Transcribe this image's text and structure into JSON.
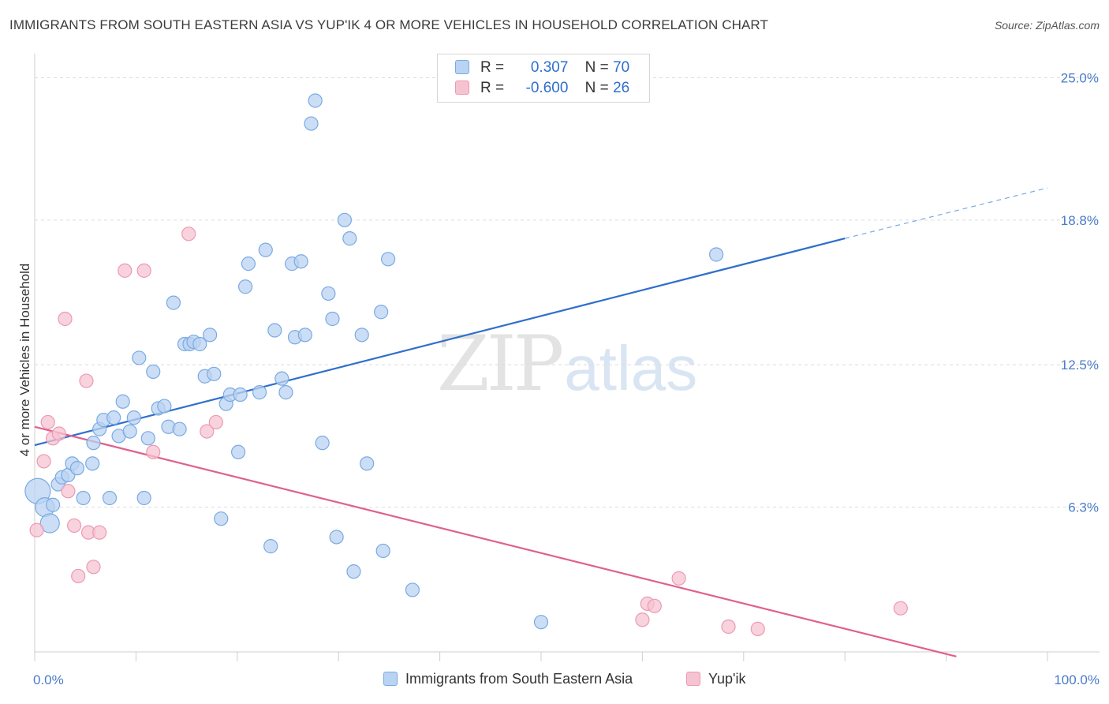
{
  "title": "IMMIGRANTS FROM SOUTH EASTERN ASIA VS YUP'IK 4 OR MORE VEHICLES IN HOUSEHOLD CORRELATION CHART",
  "source": "Source: ZipAtlas.com",
  "watermark": {
    "zip": "ZIP",
    "atlas": "atlas"
  },
  "legend": {
    "rows": [
      {
        "r_label": "R =",
        "r_value": "0.307",
        "n_label": "N =",
        "n_value": "70"
      },
      {
        "r_label": "R =",
        "r_value": "-0.600",
        "n_label": "N =",
        "n_value": "26"
      }
    ]
  },
  "colors": {
    "blue_fill": "#b9d3f2",
    "blue_stroke": "#7aaae3",
    "blue_line": "#2f6fcc",
    "pink_fill": "#f6c3d2",
    "pink_stroke": "#ec9ab4",
    "pink_line": "#e0608c",
    "tick_text": "#4a7cc7",
    "grid": "#dcdcdc"
  },
  "chart_data": {
    "type": "scatter",
    "title": "IMMIGRANTS FROM SOUTH EASTERN ASIA VS YUP'IK 4 OR MORE VEHICLES IN HOUSEHOLD CORRELATION CHART",
    "xlabel": "",
    "ylabel": "4 or more Vehicles in Household",
    "xlim": [
      0,
      100
    ],
    "ylim": [
      0,
      25.7
    ],
    "x_tick_labels": [
      "0.0%",
      "100.0%"
    ],
    "y_ticks": [
      6.3,
      12.5,
      18.8,
      25.0
    ],
    "y_tick_labels": [
      "6.3%",
      "12.5%",
      "18.8%",
      "25.0%"
    ],
    "grid": true,
    "legend_placement": "top-center",
    "series": [
      {
        "name": "Immigrants from South Eastern Asia",
        "color": "#b9d3f2",
        "trend": {
          "x": [
            0,
            80
          ],
          "y": [
            9.0,
            18.0
          ],
          "dashed_to": [
            100,
            20.2
          ]
        },
        "points": [
          {
            "x": 0.3,
            "y": 7.0,
            "s": 3
          },
          {
            "x": 1.0,
            "y": 6.3,
            "s": 2
          },
          {
            "x": 1.5,
            "y": 5.6,
            "s": 2
          },
          {
            "x": 1.8,
            "y": 6.4,
            "s": 1
          },
          {
            "x": 2.3,
            "y": 7.3,
            "s": 1
          },
          {
            "x": 2.7,
            "y": 7.6,
            "s": 1
          },
          {
            "x": 3.3,
            "y": 7.7,
            "s": 1
          },
          {
            "x": 3.7,
            "y": 8.2,
            "s": 1
          },
          {
            "x": 4.2,
            "y": 8.0,
            "s": 1
          },
          {
            "x": 4.8,
            "y": 6.7,
            "s": 1
          },
          {
            "x": 5.8,
            "y": 9.1,
            "s": 1
          },
          {
            "x": 5.7,
            "y": 8.2,
            "s": 1
          },
          {
            "x": 6.4,
            "y": 9.7,
            "s": 1
          },
          {
            "x": 6.8,
            "y": 10.1,
            "s": 1
          },
          {
            "x": 7.4,
            "y": 6.7,
            "s": 1
          },
          {
            "x": 7.8,
            "y": 10.2,
            "s": 1
          },
          {
            "x": 8.3,
            "y": 9.4,
            "s": 1
          },
          {
            "x": 8.7,
            "y": 10.9,
            "s": 1
          },
          {
            "x": 9.4,
            "y": 9.6,
            "s": 1
          },
          {
            "x": 9.8,
            "y": 10.2,
            "s": 1
          },
          {
            "x": 10.3,
            "y": 12.8,
            "s": 1
          },
          {
            "x": 10.8,
            "y": 6.7,
            "s": 1
          },
          {
            "x": 11.2,
            "y": 9.3,
            "s": 1
          },
          {
            "x": 11.7,
            "y": 12.2,
            "s": 1
          },
          {
            "x": 12.2,
            "y": 10.6,
            "s": 1
          },
          {
            "x": 12.8,
            "y": 10.7,
            "s": 1
          },
          {
            "x": 13.2,
            "y": 9.8,
            "s": 1
          },
          {
            "x": 13.7,
            "y": 15.2,
            "s": 1
          },
          {
            "x": 14.3,
            "y": 9.7,
            "s": 1
          },
          {
            "x": 14.8,
            "y": 13.4,
            "s": 1
          },
          {
            "x": 15.3,
            "y": 13.4,
            "s": 1
          },
          {
            "x": 15.7,
            "y": 13.5,
            "s": 1
          },
          {
            "x": 16.3,
            "y": 13.4,
            "s": 1
          },
          {
            "x": 16.8,
            "y": 12.0,
            "s": 1
          },
          {
            "x": 17.3,
            "y": 13.8,
            "s": 1
          },
          {
            "x": 17.7,
            "y": 12.1,
            "s": 1
          },
          {
            "x": 18.4,
            "y": 5.8,
            "s": 1
          },
          {
            "x": 18.9,
            "y": 10.8,
            "s": 1
          },
          {
            "x": 19.3,
            "y": 11.2,
            "s": 1
          },
          {
            "x": 20.1,
            "y": 8.7,
            "s": 1
          },
          {
            "x": 20.3,
            "y": 11.2,
            "s": 1
          },
          {
            "x": 20.8,
            "y": 15.9,
            "s": 1
          },
          {
            "x": 21.1,
            "y": 16.9,
            "s": 1
          },
          {
            "x": 22.2,
            "y": 11.3,
            "s": 1
          },
          {
            "x": 22.8,
            "y": 17.5,
            "s": 1
          },
          {
            "x": 23.3,
            "y": 4.6,
            "s": 1
          },
          {
            "x": 23.7,
            "y": 14.0,
            "s": 1
          },
          {
            "x": 24.4,
            "y": 11.9,
            "s": 1
          },
          {
            "x": 24.8,
            "y": 11.3,
            "s": 1
          },
          {
            "x": 25.4,
            "y": 16.9,
            "s": 1
          },
          {
            "x": 25.7,
            "y": 13.7,
            "s": 1
          },
          {
            "x": 26.3,
            "y": 17.0,
            "s": 1
          },
          {
            "x": 26.7,
            "y": 13.8,
            "s": 1
          },
          {
            "x": 27.3,
            "y": 23.0,
            "s": 1
          },
          {
            "x": 27.7,
            "y": 24.0,
            "s": 1
          },
          {
            "x": 28.4,
            "y": 9.1,
            "s": 1
          },
          {
            "x": 29.0,
            "y": 15.6,
            "s": 1
          },
          {
            "x": 29.4,
            "y": 14.5,
            "s": 1
          },
          {
            "x": 29.8,
            "y": 5.0,
            "s": 1
          },
          {
            "x": 30.6,
            "y": 18.8,
            "s": 1
          },
          {
            "x": 31.1,
            "y": 18.0,
            "s": 1
          },
          {
            "x": 31.5,
            "y": 3.5,
            "s": 1
          },
          {
            "x": 32.3,
            "y": 13.8,
            "s": 1
          },
          {
            "x": 32.8,
            "y": 8.2,
            "s": 1
          },
          {
            "x": 34.2,
            "y": 14.8,
            "s": 1
          },
          {
            "x": 34.4,
            "y": 4.4,
            "s": 1
          },
          {
            "x": 34.9,
            "y": 17.1,
            "s": 1
          },
          {
            "x": 37.3,
            "y": 2.7,
            "s": 1
          },
          {
            "x": 50.0,
            "y": 1.3,
            "s": 1
          },
          {
            "x": 67.3,
            "y": 17.3,
            "s": 1
          }
        ]
      },
      {
        "name": "Yup'ik",
        "color": "#f6c3d2",
        "trend": {
          "x": [
            0,
            91
          ],
          "y": [
            9.8,
            -0.2
          ]
        },
        "points": [
          {
            "x": 0.2,
            "y": 5.3,
            "s": 1
          },
          {
            "x": 0.9,
            "y": 8.3,
            "s": 1
          },
          {
            "x": 1.3,
            "y": 10.0,
            "s": 1
          },
          {
            "x": 1.8,
            "y": 9.3,
            "s": 1
          },
          {
            "x": 2.4,
            "y": 9.5,
            "s": 1
          },
          {
            "x": 3.0,
            "y": 14.5,
            "s": 1
          },
          {
            "x": 3.3,
            "y": 7.0,
            "s": 1
          },
          {
            "x": 3.9,
            "y": 5.5,
            "s": 1
          },
          {
            "x": 4.3,
            "y": 3.3,
            "s": 1
          },
          {
            "x": 5.1,
            "y": 11.8,
            "s": 1
          },
          {
            "x": 5.3,
            "y": 5.2,
            "s": 1
          },
          {
            "x": 5.8,
            "y": 3.7,
            "s": 1
          },
          {
            "x": 6.4,
            "y": 5.2,
            "s": 1
          },
          {
            "x": 8.9,
            "y": 16.6,
            "s": 1
          },
          {
            "x": 10.8,
            "y": 16.6,
            "s": 1
          },
          {
            "x": 11.7,
            "y": 8.7,
            "s": 1
          },
          {
            "x": 15.2,
            "y": 18.2,
            "s": 1
          },
          {
            "x": 17.0,
            "y": 9.6,
            "s": 1
          },
          {
            "x": 17.9,
            "y": 10.0,
            "s": 1
          },
          {
            "x": 60.0,
            "y": 1.4,
            "s": 1
          },
          {
            "x": 60.5,
            "y": 2.1,
            "s": 1
          },
          {
            "x": 61.2,
            "y": 2.0,
            "s": 1
          },
          {
            "x": 63.6,
            "y": 3.2,
            "s": 1
          },
          {
            "x": 68.5,
            "y": 1.1,
            "s": 1
          },
          {
            "x": 71.4,
            "y": 1.0,
            "s": 1
          },
          {
            "x": 85.5,
            "y": 1.9,
            "s": 1
          }
        ]
      }
    ]
  }
}
